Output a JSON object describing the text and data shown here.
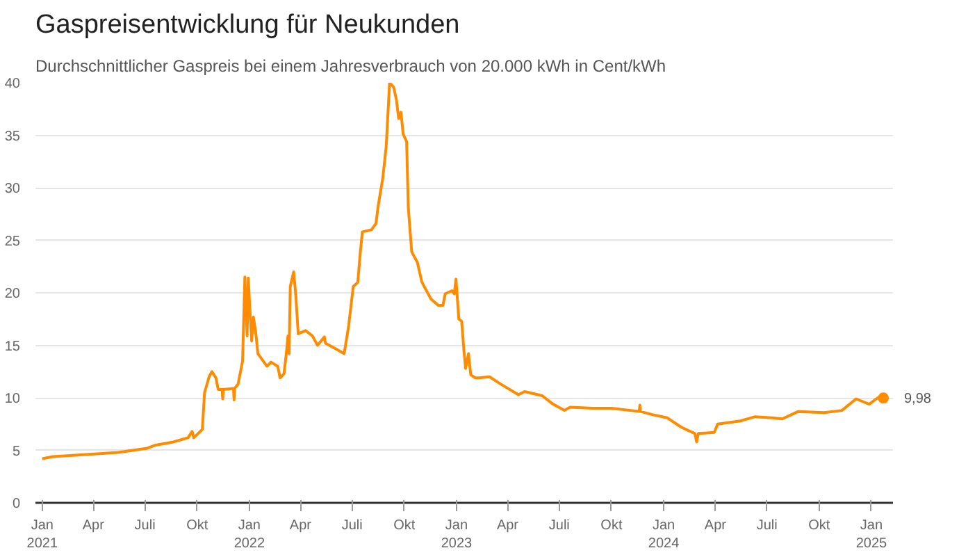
{
  "chart_data": {
    "type": "line",
    "title": "Gaspreisentwicklung für Neukunden",
    "subtitle": "Durchschnittlicher Gaspreis bei einem Jahresverbrauch von 20.000 kWh in Cent/kWh",
    "x": [
      "2021-01-01",
      "2021-01-20",
      "2021-03-20",
      "2021-05-15",
      "2021-07-05",
      "2021-07-20",
      "2021-08-20",
      "2021-09-15",
      "2021-09-22",
      "2021-09-25",
      "2021-10-10",
      "2021-10-14",
      "2021-10-22",
      "2021-10-27",
      "2021-11-03",
      "2021-11-07",
      "2021-11-14",
      "2021-11-15",
      "2021-11-16",
      "2021-12-04",
      "2021-12-05",
      "2021-12-06",
      "2021-12-12",
      "2021-12-20",
      "2021-12-24",
      "2021-12-28",
      "2021-12-30",
      "2022-01-01",
      "2022-01-05",
      "2022-01-08",
      "2022-01-12",
      "2022-01-16",
      "2022-02-01",
      "2022-02-08",
      "2022-02-20",
      "2022-02-24",
      "2022-03-03",
      "2022-03-07",
      "2022-03-10",
      "2022-03-12",
      "2022-03-14",
      "2022-03-20",
      "2022-03-24",
      "2022-03-28",
      "2022-04-10",
      "2022-04-22",
      "2022-05-01",
      "2022-05-13",
      "2022-05-15",
      "2022-06-01",
      "2022-06-17",
      "2022-06-25",
      "2022-07-03",
      "2022-07-11",
      "2022-07-15",
      "2022-07-19",
      "2022-08-04",
      "2022-08-12",
      "2022-08-16",
      "2022-08-24",
      "2022-08-30",
      "2022-09-05",
      "2022-09-12",
      "2022-09-17",
      "2022-09-21",
      "2022-09-25",
      "2022-09-29",
      "2022-10-05",
      "2022-10-08",
      "2022-10-14",
      "2022-10-24",
      "2022-11-01",
      "2022-11-17",
      "2022-11-30",
      "2022-12-08",
      "2022-12-12",
      "2022-12-24",
      "2022-12-28",
      "2022-12-31",
      "2023-01-05",
      "2023-01-10",
      "2023-01-14",
      "2023-01-17",
      "2023-01-22",
      "2023-01-26",
      "2023-02-03",
      "2023-02-10",
      "2023-02-28",
      "2023-03-20",
      "2023-04-20",
      "2023-05-01",
      "2023-06-01",
      "2023-06-20",
      "2023-07-10",
      "2023-07-20",
      "2023-08-30",
      "2023-10-01",
      "2023-11-19",
      "2023-11-20",
      "2023-11-21",
      "2023-12-12",
      "2024-01-07",
      "2024-02-01",
      "2024-02-25",
      "2024-02-28",
      "2024-03-02",
      "2024-03-30",
      "2024-04-05",
      "2024-05-15",
      "2024-06-10",
      "2024-07-10",
      "2024-07-28",
      "2024-08-25",
      "2024-10-10",
      "2024-11-10",
      "2024-12-05",
      "2024-12-28",
      "2025-01-12",
      "2025-01-22"
    ],
    "values": [
      4.2,
      4.4,
      4.6,
      4.8,
      5.2,
      5.5,
      5.8,
      6.2,
      6.8,
      6.2,
      7.0,
      10.5,
      12.0,
      12.5,
      11.9,
      10.8,
      10.8,
      9.9,
      10.8,
      10.9,
      9.8,
      10.9,
      11.3,
      13.5,
      21.5,
      15.9,
      21.4,
      19.3,
      15.4,
      17.7,
      16.3,
      14.2,
      13.0,
      13.4,
      13.0,
      11.9,
      12.3,
      14.2,
      15.9,
      14.2,
      20.6,
      22.0,
      19.6,
      16.1,
      16.4,
      15.9,
      15.0,
      15.8,
      15.2,
      14.7,
      14.2,
      16.9,
      20.6,
      21.0,
      23.6,
      25.8,
      26.0,
      26.6,
      28.3,
      30.9,
      33.9,
      40.0,
      39.6,
      38.4,
      36.6,
      37.2,
      35.1,
      34.4,
      28.1,
      23.9,
      22.9,
      21.0,
      19.4,
      18.8,
      18.8,
      19.9,
      20.2,
      19.9,
      21.3,
      17.5,
      17.3,
      14.5,
      12.8,
      14.2,
      12.2,
      11.9,
      11.9,
      12.0,
      11.3,
      10.3,
      10.6,
      10.2,
      9.4,
      8.8,
      9.1,
      9.0,
      9.0,
      8.7,
      9.3,
      8.7,
      8.4,
      8.1,
      7.2,
      6.6,
      5.8,
      6.6,
      6.7,
      7.5,
      7.8,
      8.2,
      8.1,
      8.0,
      8.7,
      8.6,
      8.8,
      9.9,
      9.4,
      10.0,
      9.98
    ],
    "color": "#ff8c00",
    "line_style": "solid",
    "xlim": [
      "2020-12-20",
      "2025-02-08"
    ],
    "xticks": [
      {
        "value": "2021-01-01",
        "label": "Jan\n2021"
      },
      {
        "value": "2021-04-01",
        "label": "Apr"
      },
      {
        "value": "2021-07-01",
        "label": "Juli"
      },
      {
        "value": "2021-10-01",
        "label": "Okt"
      },
      {
        "value": "2022-01-01",
        "label": "Jan\n2022"
      },
      {
        "value": "2022-04-01",
        "label": "Apr"
      },
      {
        "value": "2022-07-01",
        "label": "Juli"
      },
      {
        "value": "2022-10-01",
        "label": "Okt"
      },
      {
        "value": "2023-01-01",
        "label": "Jan\n2023"
      },
      {
        "value": "2023-04-01",
        "label": "Apr"
      },
      {
        "value": "2023-07-01",
        "label": "Juli"
      },
      {
        "value": "2023-10-01",
        "label": "Okt"
      },
      {
        "value": "2024-01-01",
        "label": "Jan\n2024"
      },
      {
        "value": "2024-04-01",
        "label": "Apr"
      },
      {
        "value": "2024-07-01",
        "label": "Juli"
      },
      {
        "value": "2024-10-01",
        "label": "Okt"
      },
      {
        "value": "2025-01-01",
        "label": "Jan\n2025"
      }
    ],
    "ylim": [
      0,
      40
    ],
    "yticks": [
      0,
      5,
      10,
      15,
      20,
      25,
      30,
      35,
      40
    ],
    "grid": "y",
    "annotations": [
      {
        "text": "9,98",
        "x": "2025-01-22",
        "y": 9.98
      }
    ]
  }
}
